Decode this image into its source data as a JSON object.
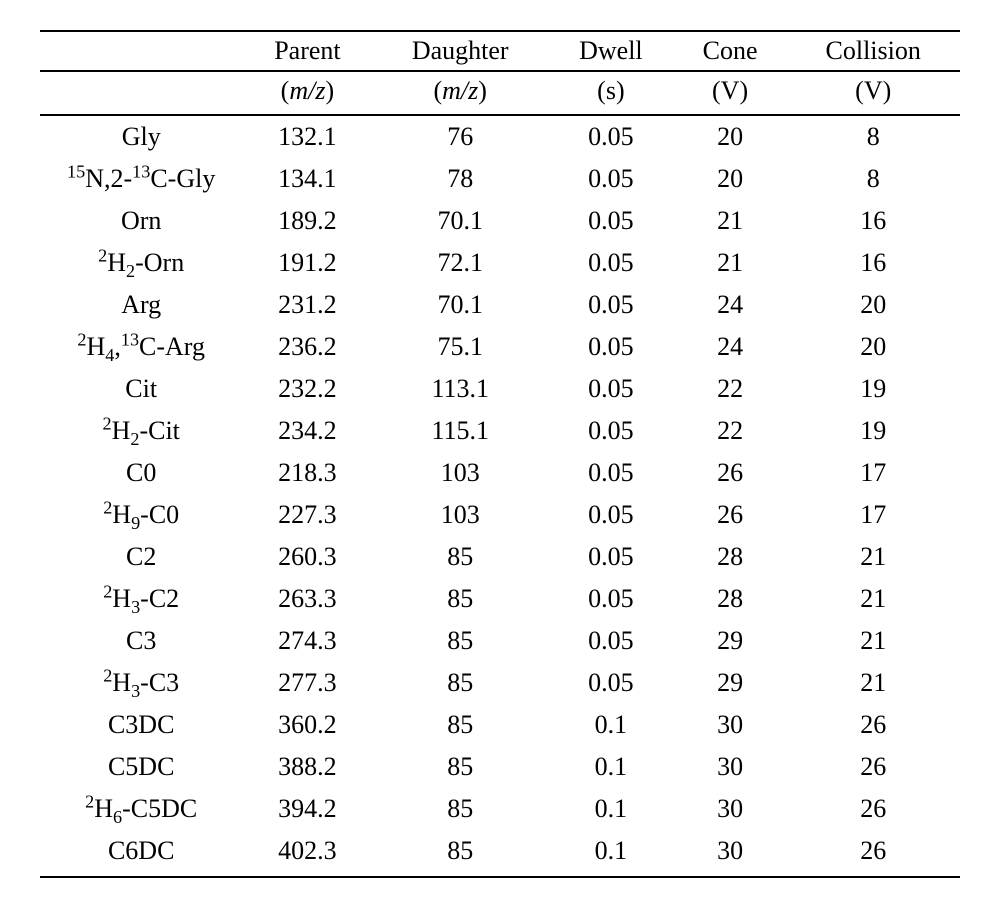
{
  "table": {
    "columns": [
      {
        "label": "",
        "unit": ""
      },
      {
        "label": "Parent",
        "unit_html": "(<span class='ital'>m/z</span>)"
      },
      {
        "label": "Daughter",
        "unit_html": "(<span class='ital'>m/z</span>)"
      },
      {
        "label": "Dwell",
        "unit_html": "(s)"
      },
      {
        "label": "Cone",
        "unit_html": "(V)"
      },
      {
        "label": "Collision",
        "unit_html": "(V)"
      }
    ],
    "rows": [
      {
        "compound_html": "Gly",
        "parent": "132.1",
        "daughter": "76",
        "dwell": "0.05",
        "cone": "20",
        "collision": "8"
      },
      {
        "compound_html": "<sup>15</sup>N,2-<sup>13</sup>C-Gly",
        "parent": "134.1",
        "daughter": "78",
        "dwell": "0.05",
        "cone": "20",
        "collision": "8"
      },
      {
        "compound_html": "Orn",
        "parent": "189.2",
        "daughter": "70.1",
        "dwell": "0.05",
        "cone": "21",
        "collision": "16"
      },
      {
        "compound_html": "<sup>2</sup>H<sub>2</sub>-Orn",
        "parent": "191.2",
        "daughter": "72.1",
        "dwell": "0.05",
        "cone": "21",
        "collision": "16"
      },
      {
        "compound_html": "Arg",
        "parent": "231.2",
        "daughter": "70.1",
        "dwell": "0.05",
        "cone": "24",
        "collision": "20"
      },
      {
        "compound_html": "<sup>2</sup>H<sub>4</sub>,<sup>13</sup>C-Arg",
        "parent": "236.2",
        "daughter": "75.1",
        "dwell": "0.05",
        "cone": "24",
        "collision": "20"
      },
      {
        "compound_html": "Cit",
        "parent": "232.2",
        "daughter": "113.1",
        "dwell": "0.05",
        "cone": "22",
        "collision": "19"
      },
      {
        "compound_html": "<sup>2</sup>H<sub>2</sub>-Cit",
        "parent": "234.2",
        "daughter": "115.1",
        "dwell": "0.05",
        "cone": "22",
        "collision": "19"
      },
      {
        "compound_html": "C0",
        "parent": "218.3",
        "daughter": "103",
        "dwell": "0.05",
        "cone": "26",
        "collision": "17"
      },
      {
        "compound_html": "<sup>2</sup>H<sub>9</sub>-C0",
        "parent": "227.3",
        "daughter": "103",
        "dwell": "0.05",
        "cone": "26",
        "collision": "17"
      },
      {
        "compound_html": "C2",
        "parent": "260.3",
        "daughter": "85",
        "dwell": "0.05",
        "cone": "28",
        "collision": "21"
      },
      {
        "compound_html": "<sup>2</sup>H<sub>3</sub>-C2",
        "parent": "263.3",
        "daughter": "85",
        "dwell": "0.05",
        "cone": "28",
        "collision": "21"
      },
      {
        "compound_html": "C3",
        "parent": "274.3",
        "daughter": "85",
        "dwell": "0.05",
        "cone": "29",
        "collision": "21"
      },
      {
        "compound_html": "<sup>2</sup>H<sub>3</sub>-C3",
        "parent": "277.3",
        "daughter": "85",
        "dwell": "0.05",
        "cone": "29",
        "collision": "21"
      },
      {
        "compound_html": "C3DC",
        "parent": "360.2",
        "daughter": "85",
        "dwell": "0.1",
        "cone": "30",
        "collision": "26"
      },
      {
        "compound_html": "C5DC",
        "parent": "388.2",
        "daughter": "85",
        "dwell": "0.1",
        "cone": "30",
        "collision": "26"
      },
      {
        "compound_html": "<sup>2</sup>H<sub>6</sub>-C5DC",
        "parent": "394.2",
        "daughter": "85",
        "dwell": "0.1",
        "cone": "30",
        "collision": "26"
      },
      {
        "compound_html": "C6DC",
        "parent": "402.3",
        "daughter": "85",
        "dwell": "0.1",
        "cone": "30",
        "collision": "26"
      }
    ]
  }
}
